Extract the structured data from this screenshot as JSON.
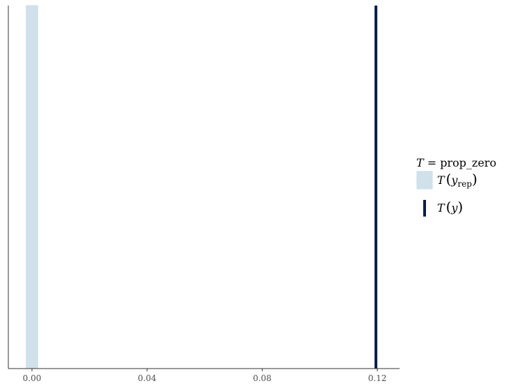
{
  "chart_data": {
    "type": "histogram",
    "title": "",
    "xlabel": "",
    "ylabel": "",
    "xlim": [
      -0.008,
      0.128
    ],
    "x_ticks": [
      {
        "value": 0.0,
        "label": "0.00"
      },
      {
        "value": 0.04,
        "label": "0.04"
      },
      {
        "value": 0.08,
        "label": "0.08"
      },
      {
        "value": 0.12,
        "label": "0.12"
      }
    ],
    "grid": false,
    "series": [
      {
        "name": "T(y_rep)",
        "kind": "histogram",
        "bins": [
          {
            "x0": -0.002,
            "x1": 0.002,
            "relative_height": 1.0
          }
        ],
        "color": "#d1e1ec"
      },
      {
        "name": "T(y)",
        "kind": "vline",
        "x": 0.1195,
        "color": "#011f4b"
      }
    ],
    "legend": {
      "placement": "right",
      "title_T": "T",
      "title_rest": " = prop_zero",
      "rep_T": "T",
      "rep_y": "y",
      "rep_sub": "rep",
      "obs_T": "T",
      "obs_y": "y"
    }
  }
}
